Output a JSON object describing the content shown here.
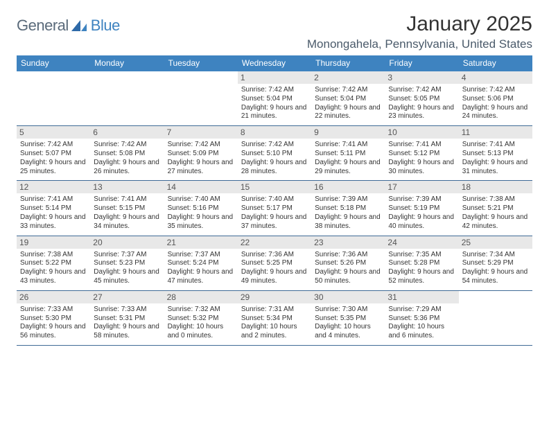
{
  "brand": {
    "general": "General",
    "blue": "Blue"
  },
  "title": "January 2025",
  "location": "Monongahela, Pennsylvania, United States",
  "colors": {
    "headerBlue": "#3e83c0",
    "rowBorder": "#3e6a96",
    "dayNumBg": "#e8e8e8",
    "text": "#333333"
  },
  "dayNames": [
    "Sunday",
    "Monday",
    "Tuesday",
    "Wednesday",
    "Thursday",
    "Friday",
    "Saturday"
  ],
  "weeks": [
    [
      {
        "n": "",
        "sr": "",
        "ss": "",
        "dl": ""
      },
      {
        "n": "",
        "sr": "",
        "ss": "",
        "dl": ""
      },
      {
        "n": "",
        "sr": "",
        "ss": "",
        "dl": ""
      },
      {
        "n": "1",
        "sr": "Sunrise: 7:42 AM",
        "ss": "Sunset: 5:04 PM",
        "dl": "Daylight: 9 hours and 21 minutes."
      },
      {
        "n": "2",
        "sr": "Sunrise: 7:42 AM",
        "ss": "Sunset: 5:04 PM",
        "dl": "Daylight: 9 hours and 22 minutes."
      },
      {
        "n": "3",
        "sr": "Sunrise: 7:42 AM",
        "ss": "Sunset: 5:05 PM",
        "dl": "Daylight: 9 hours and 23 minutes."
      },
      {
        "n": "4",
        "sr": "Sunrise: 7:42 AM",
        "ss": "Sunset: 5:06 PM",
        "dl": "Daylight: 9 hours and 24 minutes."
      }
    ],
    [
      {
        "n": "5",
        "sr": "Sunrise: 7:42 AM",
        "ss": "Sunset: 5:07 PM",
        "dl": "Daylight: 9 hours and 25 minutes."
      },
      {
        "n": "6",
        "sr": "Sunrise: 7:42 AM",
        "ss": "Sunset: 5:08 PM",
        "dl": "Daylight: 9 hours and 26 minutes."
      },
      {
        "n": "7",
        "sr": "Sunrise: 7:42 AM",
        "ss": "Sunset: 5:09 PM",
        "dl": "Daylight: 9 hours and 27 minutes."
      },
      {
        "n": "8",
        "sr": "Sunrise: 7:42 AM",
        "ss": "Sunset: 5:10 PM",
        "dl": "Daylight: 9 hours and 28 minutes."
      },
      {
        "n": "9",
        "sr": "Sunrise: 7:41 AM",
        "ss": "Sunset: 5:11 PM",
        "dl": "Daylight: 9 hours and 29 minutes."
      },
      {
        "n": "10",
        "sr": "Sunrise: 7:41 AM",
        "ss": "Sunset: 5:12 PM",
        "dl": "Daylight: 9 hours and 30 minutes."
      },
      {
        "n": "11",
        "sr": "Sunrise: 7:41 AM",
        "ss": "Sunset: 5:13 PM",
        "dl": "Daylight: 9 hours and 31 minutes."
      }
    ],
    [
      {
        "n": "12",
        "sr": "Sunrise: 7:41 AM",
        "ss": "Sunset: 5:14 PM",
        "dl": "Daylight: 9 hours and 33 minutes."
      },
      {
        "n": "13",
        "sr": "Sunrise: 7:41 AM",
        "ss": "Sunset: 5:15 PM",
        "dl": "Daylight: 9 hours and 34 minutes."
      },
      {
        "n": "14",
        "sr": "Sunrise: 7:40 AM",
        "ss": "Sunset: 5:16 PM",
        "dl": "Daylight: 9 hours and 35 minutes."
      },
      {
        "n": "15",
        "sr": "Sunrise: 7:40 AM",
        "ss": "Sunset: 5:17 PM",
        "dl": "Daylight: 9 hours and 37 minutes."
      },
      {
        "n": "16",
        "sr": "Sunrise: 7:39 AM",
        "ss": "Sunset: 5:18 PM",
        "dl": "Daylight: 9 hours and 38 minutes."
      },
      {
        "n": "17",
        "sr": "Sunrise: 7:39 AM",
        "ss": "Sunset: 5:19 PM",
        "dl": "Daylight: 9 hours and 40 minutes."
      },
      {
        "n": "18",
        "sr": "Sunrise: 7:38 AM",
        "ss": "Sunset: 5:21 PM",
        "dl": "Daylight: 9 hours and 42 minutes."
      }
    ],
    [
      {
        "n": "19",
        "sr": "Sunrise: 7:38 AM",
        "ss": "Sunset: 5:22 PM",
        "dl": "Daylight: 9 hours and 43 minutes."
      },
      {
        "n": "20",
        "sr": "Sunrise: 7:37 AM",
        "ss": "Sunset: 5:23 PM",
        "dl": "Daylight: 9 hours and 45 minutes."
      },
      {
        "n": "21",
        "sr": "Sunrise: 7:37 AM",
        "ss": "Sunset: 5:24 PM",
        "dl": "Daylight: 9 hours and 47 minutes."
      },
      {
        "n": "22",
        "sr": "Sunrise: 7:36 AM",
        "ss": "Sunset: 5:25 PM",
        "dl": "Daylight: 9 hours and 49 minutes."
      },
      {
        "n": "23",
        "sr": "Sunrise: 7:36 AM",
        "ss": "Sunset: 5:26 PM",
        "dl": "Daylight: 9 hours and 50 minutes."
      },
      {
        "n": "24",
        "sr": "Sunrise: 7:35 AM",
        "ss": "Sunset: 5:28 PM",
        "dl": "Daylight: 9 hours and 52 minutes."
      },
      {
        "n": "25",
        "sr": "Sunrise: 7:34 AM",
        "ss": "Sunset: 5:29 PM",
        "dl": "Daylight: 9 hours and 54 minutes."
      }
    ],
    [
      {
        "n": "26",
        "sr": "Sunrise: 7:33 AM",
        "ss": "Sunset: 5:30 PM",
        "dl": "Daylight: 9 hours and 56 minutes."
      },
      {
        "n": "27",
        "sr": "Sunrise: 7:33 AM",
        "ss": "Sunset: 5:31 PM",
        "dl": "Daylight: 9 hours and 58 minutes."
      },
      {
        "n": "28",
        "sr": "Sunrise: 7:32 AM",
        "ss": "Sunset: 5:32 PM",
        "dl": "Daylight: 10 hours and 0 minutes."
      },
      {
        "n": "29",
        "sr": "Sunrise: 7:31 AM",
        "ss": "Sunset: 5:34 PM",
        "dl": "Daylight: 10 hours and 2 minutes."
      },
      {
        "n": "30",
        "sr": "Sunrise: 7:30 AM",
        "ss": "Sunset: 5:35 PM",
        "dl": "Daylight: 10 hours and 4 minutes."
      },
      {
        "n": "31",
        "sr": "Sunrise: 7:29 AM",
        "ss": "Sunset: 5:36 PM",
        "dl": "Daylight: 10 hours and 6 minutes."
      },
      {
        "n": "",
        "sr": "",
        "ss": "",
        "dl": ""
      }
    ]
  ]
}
